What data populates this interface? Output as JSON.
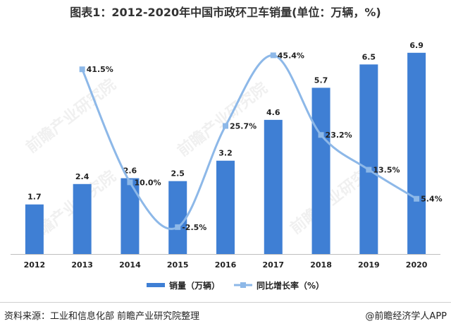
{
  "title": "图表1：2012-2020年中国市政环卫车销量(单位：万辆，%)",
  "chart_data": {
    "type": "bar+line",
    "categories": [
      "2012",
      "2013",
      "2014",
      "2015",
      "2016",
      "2017",
      "2018",
      "2019",
      "2020"
    ],
    "series": [
      {
        "name": "销量（万辆）",
        "type": "bar",
        "values": [
          1.7,
          2.4,
          2.6,
          2.5,
          3.2,
          4.6,
          5.7,
          6.5,
          6.9
        ],
        "labels": [
          "1.7",
          "2.4",
          "2.6",
          "2.5",
          "3.2",
          "4.6",
          "5.7",
          "6.5",
          "6.9"
        ]
      },
      {
        "name": "同比增长率（%）",
        "type": "line",
        "smooth": true,
        "values": [
          null,
          41.5,
          10.0,
          -2.5,
          25.7,
          45.4,
          23.2,
          13.5,
          5.4
        ],
        "labels": [
          "",
          "41.5%",
          "10.0%",
          "-2.5%",
          "25.7%",
          "45.4%",
          "23.2%",
          "13.5%",
          "5.4%"
        ]
      }
    ],
    "bar_ylim": [
      0,
      7.5
    ],
    "line_ylim": [
      -10,
      50
    ],
    "legend_position": "bottom-center",
    "grid": false
  },
  "colors": {
    "bar": "#3f7fd4",
    "line": "#8db8e8",
    "marker": "#8db8e8",
    "text": "#222222"
  },
  "watermark": "前瞻产业研究院",
  "source": "资料来源：工业和信息化部 前瞻产业研究院整理",
  "brand": "@前瞻经济学人APP"
}
